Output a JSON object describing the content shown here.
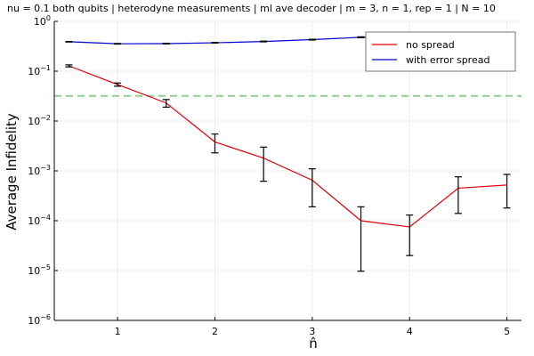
{
  "chart_data": {
    "type": "line",
    "title": "nu = 0.1 both qubits | heterodyne measurements | ml ave decoder | m = 3, n = 1, rep = 1 | N = 10",
    "xlabel": "n̂",
    "ylabel": "Average Infidelity",
    "xlim": [
      0.35,
      5.15
    ],
    "ylim": [
      1e-06,
      1
    ],
    "yscale": "log",
    "grid": true,
    "legend_position": "top-right",
    "x_ticks": [
      1,
      2,
      3,
      4,
      5
    ],
    "x_tick_labels": [
      "1",
      "2",
      "3",
      "4",
      "5"
    ],
    "y_ticks": [
      1e-06,
      1e-05,
      0.0001,
      0.001,
      0.01,
      0.1,
      1
    ],
    "y_tick_labels": [
      {
        "base": "10",
        "exp": "−6"
      },
      {
        "base": "10",
        "exp": "−5"
      },
      {
        "base": "10",
        "exp": "−4"
      },
      {
        "base": "10",
        "exp": "−3"
      },
      {
        "base": "10",
        "exp": "−2"
      },
      {
        "base": "10",
        "exp": "−1"
      },
      {
        "base": "10",
        "exp": "0"
      }
    ],
    "x": [
      0.5,
      1.0,
      1.5,
      2.0,
      2.5,
      3.0,
      3.5,
      4.0,
      4.5,
      5.0
    ],
    "series": [
      {
        "name": "no spread",
        "color": "#e8000b",
        "values": [
          0.128,
          0.054,
          0.023,
          0.0038,
          0.0018,
          0.00065,
          0.0001,
          7.5e-05,
          0.00045,
          0.00052
        ],
        "err_low": [
          0.122,
          0.05,
          0.019,
          0.0023,
          0.00062,
          0.00019,
          9.7e-06,
          2e-05,
          0.00014,
          0.00018
        ],
        "err_high": [
          0.134,
          0.058,
          0.027,
          0.0055,
          0.003,
          0.0011,
          0.00019,
          0.00013,
          0.00076,
          0.00085
        ]
      },
      {
        "name": "with error spread",
        "color": "#0000cc",
        "values": [
          0.39,
          0.355,
          0.358,
          0.372,
          0.395,
          0.43,
          0.48,
          0.5,
          0.51,
          0.53
        ],
        "err_low": [
          0.385,
          0.35,
          0.352,
          0.366,
          0.388,
          0.422,
          0.47,
          0.49,
          0.5,
          0.52
        ],
        "err_high": [
          0.395,
          0.36,
          0.364,
          0.378,
          0.402,
          0.438,
          0.49,
          0.51,
          0.52,
          0.54
        ]
      }
    ],
    "threshold": {
      "value": 0.032,
      "color": "#8fcf94",
      "style": "dashed"
    },
    "colors": {
      "errorbar": "#000000",
      "grid": "#e6e6e6",
      "axis": "#000000"
    }
  }
}
